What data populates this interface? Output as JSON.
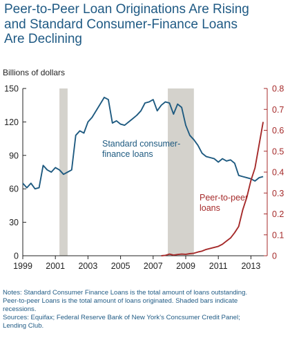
{
  "title_lines": [
    "Peer-to-Peer Loan Originations Are Rising",
    "and Standard Consumer-Finance Loans",
    "Are Declining"
  ],
  "unit_label": "Billions of dollars",
  "notes": [
    "Notes: Standard Consumer Finance Loans is the total amount of loans outstanding.",
    "Peer-to-peer Loans is the total amount of loans originated. Shaded bars indicate",
    "recessions.",
    "Sources: Equifax; Federal Reserve Bank of New York’s Concsumer Credit Panel;",
    "Lending Club."
  ],
  "colors": {
    "title": "#1f5a84",
    "standard": "#1e5a80",
    "p2p": "#a52a2a",
    "recession": "#d4d2cc",
    "left_axis": "#222222",
    "right_axis": "#a52a2a"
  },
  "chart_data": {
    "type": "line",
    "xlim": [
      1999,
      2014
    ],
    "x_ticks": [
      "1999",
      "2001",
      "2003",
      "2005",
      "2007",
      "2009",
      "2011",
      "2013"
    ],
    "x_tick_values": [
      1999,
      2001,
      2003,
      2005,
      2007,
      2009,
      2011,
      2013
    ],
    "left_axis": {
      "lim": [
        0,
        150
      ],
      "ticks": [
        "0",
        "30",
        "60",
        "90",
        "120",
        "150"
      ]
    },
    "right_axis": {
      "lim": [
        0,
        0.8
      ],
      "ticks": [
        "0",
        "0.1",
        "0.2",
        "0.3",
        "0.4",
        "0.5",
        "0.6",
        "0.7",
        "0.8"
      ]
    },
    "recessions": [
      [
        2001.25,
        2001.75
      ],
      [
        2007.9,
        2009.5
      ]
    ],
    "series": [
      {
        "name": "Standard consumer-finance loans",
        "label_lines": [
          "Standard consumer-",
          "finance loans"
        ],
        "axis": "left",
        "points": [
          [
            1999.0,
            65
          ],
          [
            1999.25,
            61
          ],
          [
            1999.5,
            65
          ],
          [
            1999.75,
            60
          ],
          [
            2000.0,
            61
          ],
          [
            2000.25,
            81
          ],
          [
            2000.5,
            77
          ],
          [
            2000.75,
            75
          ],
          [
            2001.0,
            79
          ],
          [
            2001.25,
            77
          ],
          [
            2001.5,
            73
          ],
          [
            2001.75,
            75
          ],
          [
            2002.0,
            77
          ],
          [
            2002.25,
            108
          ],
          [
            2002.5,
            112
          ],
          [
            2002.75,
            110
          ],
          [
            2003.0,
            120
          ],
          [
            2003.25,
            124
          ],
          [
            2003.5,
            130
          ],
          [
            2003.75,
            136
          ],
          [
            2004.0,
            142
          ],
          [
            2004.25,
            140
          ],
          [
            2004.5,
            119
          ],
          [
            2004.75,
            121
          ],
          [
            2005.0,
            118
          ],
          [
            2005.25,
            117
          ],
          [
            2005.5,
            120
          ],
          [
            2005.75,
            123
          ],
          [
            2006.0,
            126
          ],
          [
            2006.25,
            130
          ],
          [
            2006.5,
            137
          ],
          [
            2006.75,
            138
          ],
          [
            2007.0,
            140
          ],
          [
            2007.25,
            130
          ],
          [
            2007.5,
            135
          ],
          [
            2007.75,
            138
          ],
          [
            2008.0,
            137
          ],
          [
            2008.25,
            127
          ],
          [
            2008.5,
            136
          ],
          [
            2008.75,
            133
          ],
          [
            2009.0,
            117
          ],
          [
            2009.25,
            108
          ],
          [
            2009.5,
            104
          ],
          [
            2009.75,
            99
          ],
          [
            2010.0,
            92
          ],
          [
            2010.25,
            89
          ],
          [
            2010.5,
            88
          ],
          [
            2010.75,
            87
          ],
          [
            2011.0,
            84
          ],
          [
            2011.25,
            87
          ],
          [
            2011.5,
            85
          ],
          [
            2011.75,
            86
          ],
          [
            2012.0,
            83
          ],
          [
            2012.25,
            72
          ],
          [
            2012.5,
            71
          ],
          [
            2012.75,
            70
          ],
          [
            2013.0,
            69
          ],
          [
            2013.25,
            67
          ],
          [
            2013.5,
            70
          ],
          [
            2013.75,
            71
          ]
        ]
      },
      {
        "name": "Peer-to-peer loans",
        "label_lines": [
          "Peer-to-peer",
          "loans"
        ],
        "axis": "right",
        "points": [
          [
            2007.5,
            0.0
          ],
          [
            2007.75,
            0.002
          ],
          [
            2008.0,
            0.008
          ],
          [
            2008.25,
            0.003
          ],
          [
            2008.5,
            0.006
          ],
          [
            2008.75,
            0.008
          ],
          [
            2009.0,
            0.007
          ],
          [
            2009.25,
            0.01
          ],
          [
            2009.5,
            0.012
          ],
          [
            2009.75,
            0.018
          ],
          [
            2010.0,
            0.022
          ],
          [
            2010.25,
            0.03
          ],
          [
            2010.5,
            0.035
          ],
          [
            2010.75,
            0.04
          ],
          [
            2011.0,
            0.045
          ],
          [
            2011.25,
            0.055
          ],
          [
            2011.5,
            0.07
          ],
          [
            2011.75,
            0.085
          ],
          [
            2012.0,
            0.11
          ],
          [
            2012.25,
            0.14
          ],
          [
            2012.5,
            0.22
          ],
          [
            2012.75,
            0.28
          ],
          [
            2013.0,
            0.36
          ],
          [
            2013.25,
            0.42
          ],
          [
            2013.5,
            0.53
          ],
          [
            2013.75,
            0.64
          ]
        ]
      }
    ]
  }
}
